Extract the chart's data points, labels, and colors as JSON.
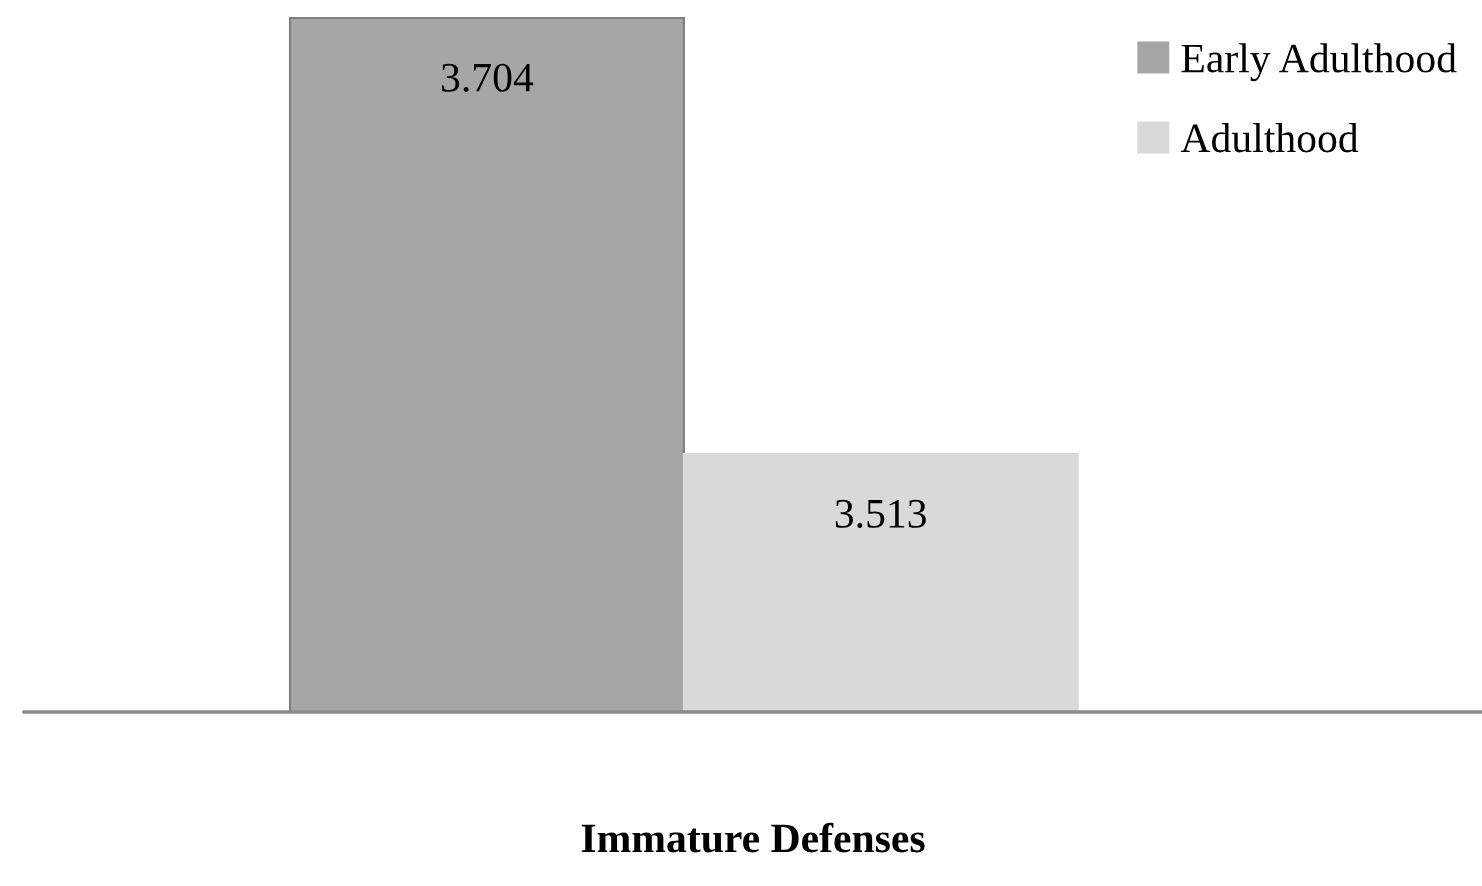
{
  "chart_data": {
    "type": "bar",
    "xlabel": "Immature Defenses",
    "categories": [
      null
    ],
    "series": [
      {
        "name": "Early Adulthood",
        "color": "#a6a6a6",
        "values": [
          3.704
        ]
      },
      {
        "name": "Adulthood",
        "color": "#d9d9d9",
        "values": [
          3.513
        ]
      }
    ],
    "ylim": [
      3.4,
      3.704
    ],
    "data_labels": true,
    "legend": "top right",
    "tick_labels": false,
    "grid": false
  }
}
